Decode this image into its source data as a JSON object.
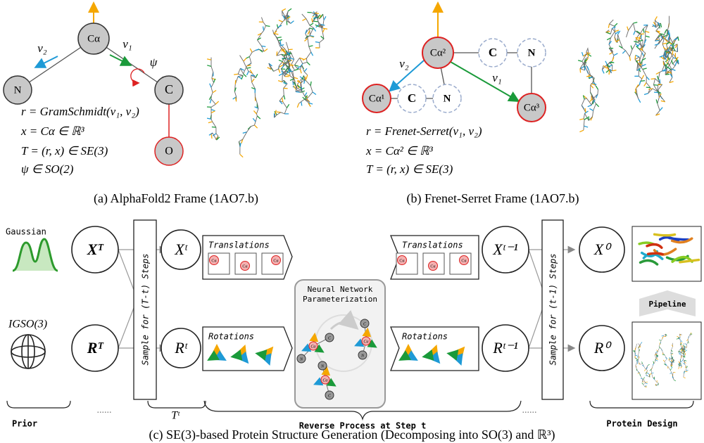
{
  "panel_a": {
    "nodes": [
      "Cα",
      "N",
      "C",
      "O"
    ],
    "vectors": [
      "v₂",
      "v₁"
    ],
    "angle": "ψ",
    "equations": [
      "r = GramSchmidt(v₁, v₂)",
      "x = Cα ∈ ℝ³",
      "T = (r, x) ∈ SE(3)",
      "ψ ∈ SO(2)"
    ],
    "caption": "(a)  AlphaFold2 Frame (1AO7.b)"
  },
  "panel_b": {
    "nodes": [
      "Cα²",
      "C",
      "N",
      "Cα¹",
      "C",
      "N",
      "Cα³"
    ],
    "vectors": [
      "v₂",
      "v₁"
    ],
    "equations": [
      "r = Frenet-Serret(v₁, v₂)",
      "x = Cα² ∈ ℝ³",
      "T = (r, x) ∈ SE(3)"
    ],
    "caption": "(b)  Frenet-Serret Frame (1AO7.b)"
  },
  "panel_c": {
    "priors": [
      "Gaussian",
      "IGSO(3)"
    ],
    "states": [
      "Xᵀ",
      "Rᵀ",
      "Xᵗ",
      "Rᵗ",
      "Xᵗ⁻¹",
      "Rᵗ⁻¹",
      "X⁰",
      "R⁰"
    ],
    "samplers": [
      "Sample for (T-t) Steps",
      "Sample for (t-1) Steps"
    ],
    "inputs": [
      "Translations",
      "Rotations"
    ],
    "network": [
      "Neural Network",
      "Parameterization"
    ],
    "network_nodes": [
      "N",
      "Cα",
      "C",
      "C",
      "Cα",
      "N",
      "N",
      "Cα",
      "C"
    ],
    "atom_label": "Cα",
    "outputs": [
      "Translations",
      "Rotations"
    ],
    "pipeline": "Pipeline",
    "braces": [
      "Prior",
      "......",
      "Tᵗ",
      "Reverse Process at Step t",
      "......",
      "Protein Design"
    ],
    "caption": "(c)  SE(3)-based Protein Structure Generation (Decomposing into SO(3) and ℝ³)"
  }
}
